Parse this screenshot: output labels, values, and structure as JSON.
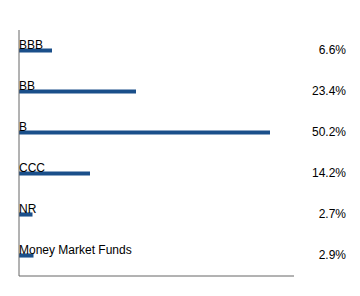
{
  "chart_data": {
    "type": "bar",
    "orientation": "horizontal",
    "categories": [
      "BBB",
      "BB",
      "B",
      "CCC",
      "NR",
      "Money Market Funds"
    ],
    "values": [
      6.6,
      23.4,
      50.2,
      14.2,
      2.7,
      2.9
    ],
    "value_labels": [
      "6.6%",
      "23.4%",
      "50.2%",
      "14.2%",
      "2.7%",
      "2.9%"
    ],
    "color": "#1a4f8a",
    "xlim": [
      0,
      55
    ],
    "grid": false,
    "tick_labels": false,
    "data_labels": true
  }
}
